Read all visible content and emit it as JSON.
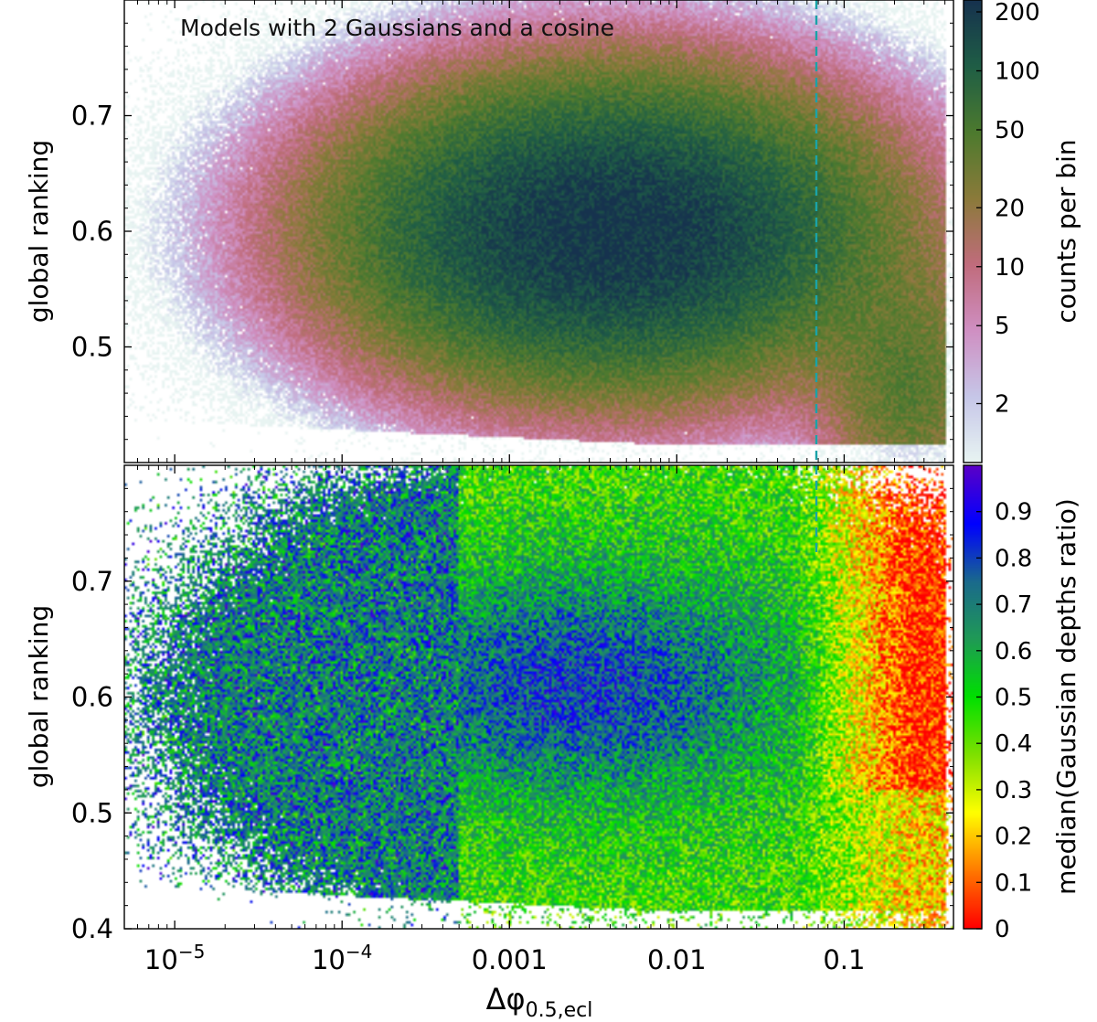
{
  "chart_data": [
    {
      "type": "heatmap",
      "title": "",
      "annotation": "Models with 2 Gaussians and a cosine",
      "xlabel": "",
      "ylabel": "global ranking",
      "xscale": "log",
      "xlim": [
        5e-06,
        0.45
      ],
      "ylim": [
        0.4,
        0.8
      ],
      "x_ticks": [
        1e-05,
        0.0001,
        0.001,
        0.01,
        0.1
      ],
      "y_ticks": [
        0.5,
        0.6,
        0.7
      ],
      "y_tick_labels": [
        "0.5",
        "0.6",
        "0.7"
      ],
      "reference_line_x": 0.07,
      "reference_line_color": "#1aa3a8",
      "colorbar": {
        "label": "counts per bin",
        "scale": "log",
        "range": [
          1,
          230
        ],
        "ticks": [
          2,
          5,
          10,
          20,
          50,
          100,
          200
        ],
        "tick_labels": [
          "2",
          "5",
          "10",
          "20",
          "50",
          "100",
          "200"
        ],
        "colormap": [
          "#e8f4f2",
          "#c6c6e8",
          "#cf8fc2",
          "#c06c7c",
          "#8b7a3a",
          "#4d7a2e",
          "#1f5e45",
          "#16324e"
        ]
      },
      "density_components": [
        {
          "center_log10_x": -2.4,
          "center_y": 0.6,
          "sigma_log10_x": 0.85,
          "sigma_y": 0.07,
          "peak_counts": 220
        },
        {
          "center_log10_x": -0.6,
          "center_y": 0.46,
          "sigma_log10_x": 0.3,
          "sigma_y": 0.06,
          "peak_counts": 40
        }
      ]
    },
    {
      "type": "heatmap",
      "title": "",
      "xlabel": "Δφ0.5,ecl",
      "ylabel": "global ranking",
      "xscale": "log",
      "xlim": [
        5e-06,
        0.45
      ],
      "ylim": [
        0.4,
        0.8
      ],
      "x_ticks": [
        1e-05,
        0.0001,
        0.001,
        0.01,
        0.1
      ],
      "y_ticks": [
        0.4,
        0.5,
        0.6,
        0.7
      ],
      "y_tick_labels": [
        "0.4",
        "0.5",
        "0.6",
        "0.7"
      ],
      "reference_line_x": 0.07,
      "reference_line_color": "#1aa3a8",
      "colorbar": {
        "label": "median(Gaussian depths ratio)",
        "scale": "linear",
        "range": [
          0,
          1
        ],
        "ticks": [
          0,
          0.1,
          0.2,
          0.3,
          0.4,
          0.5,
          0.6,
          0.7,
          0.8,
          0.9
        ],
        "tick_labels": [
          "0",
          "0.1",
          "0.2",
          "0.3",
          "0.4",
          "0.5",
          "0.6",
          "0.7",
          "0.8",
          "0.9"
        ],
        "colormap": [
          "#ff0000",
          "#ff7a00",
          "#ffff00",
          "#7ee000",
          "#00e000",
          "#1f9a55",
          "#1a6a8c",
          "#0000ff",
          "#5a00c8"
        ]
      },
      "regions": [
        {
          "description_value": "dense core around x≈0.003, y≈0.6",
          "median_ratio": 0.8
        },
        {
          "description_value": "outskirts 0.001–0.05",
          "median_ratio": 0.5
        },
        {
          "description_value": "x≈0.2, y≈0.47",
          "median_ratio": 0.25
        },
        {
          "description_value": "x≈0.2, y≈0.6",
          "median_ratio": 0.05
        }
      ]
    }
  ],
  "x_tick_labels": [
    "10",
    "10",
    "0.001",
    "0.01",
    "0.1"
  ],
  "x_tick_label_exponents": [
    "−5",
    "−4",
    "",
    "",
    ""
  ],
  "xlabel_parts": {
    "symbol": "Δφ",
    "subscript": "0.5,ecl"
  }
}
